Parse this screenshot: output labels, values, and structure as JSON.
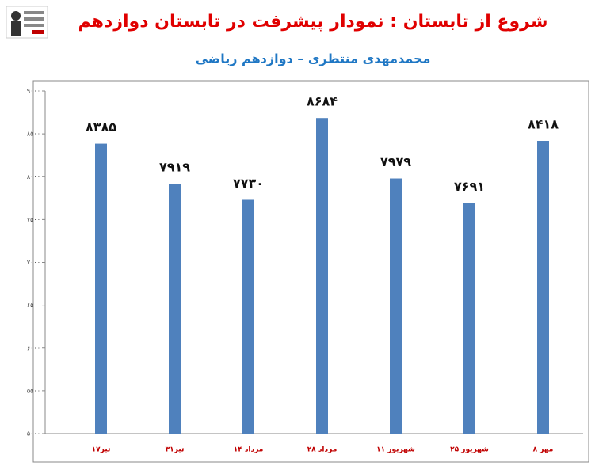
{
  "chart_data": {
    "type": "bar",
    "title": "شروع از تابستان : نمودار پیشرفت در تابستان دوازدهم",
    "subtitle": "محمدمهدی منتظری – دوازدهم ریاضی",
    "categories": [
      "۱۷تیر",
      "۳۱تیر",
      "۱۴ مرداد",
      "۲۸ مرداد",
      "۱۱ شهریور",
      "۲۵ شهریور",
      "۸ مهر"
    ],
    "values": [
      8385,
      7919,
      7730,
      8684,
      7979,
      7691,
      8418
    ],
    "value_labels": [
      "۸۳۸۵",
      "۷۹۱۹",
      "۷۷۳۰",
      "۸۶۸۴",
      "۷۹۷۹",
      "۷۶۹۱",
      "۸۴۱۸"
    ],
    "color": "#4f81bd",
    "ylim": [
      5000,
      9000
    ],
    "yticks": [
      {
        "value": 5000,
        "label": "۵۰۰۰"
      },
      {
        "value": 5500,
        "label": "۵۵۰۰"
      },
      {
        "value": 6000,
        "label": "۶۰۰۰"
      },
      {
        "value": 6500,
        "label": "۶۵۰۰"
      },
      {
        "value": 7000,
        "label": "۷۰۰۰"
      },
      {
        "value": 7500,
        "label": "۷۵۰۰"
      },
      {
        "value": 8000,
        "label": "۸۰۰۰"
      },
      {
        "value": 8500,
        "label": "۸۵۰۰"
      },
      {
        "value": 9000,
        "label": "۹۰۰۰"
      }
    ],
    "grid": false
  }
}
